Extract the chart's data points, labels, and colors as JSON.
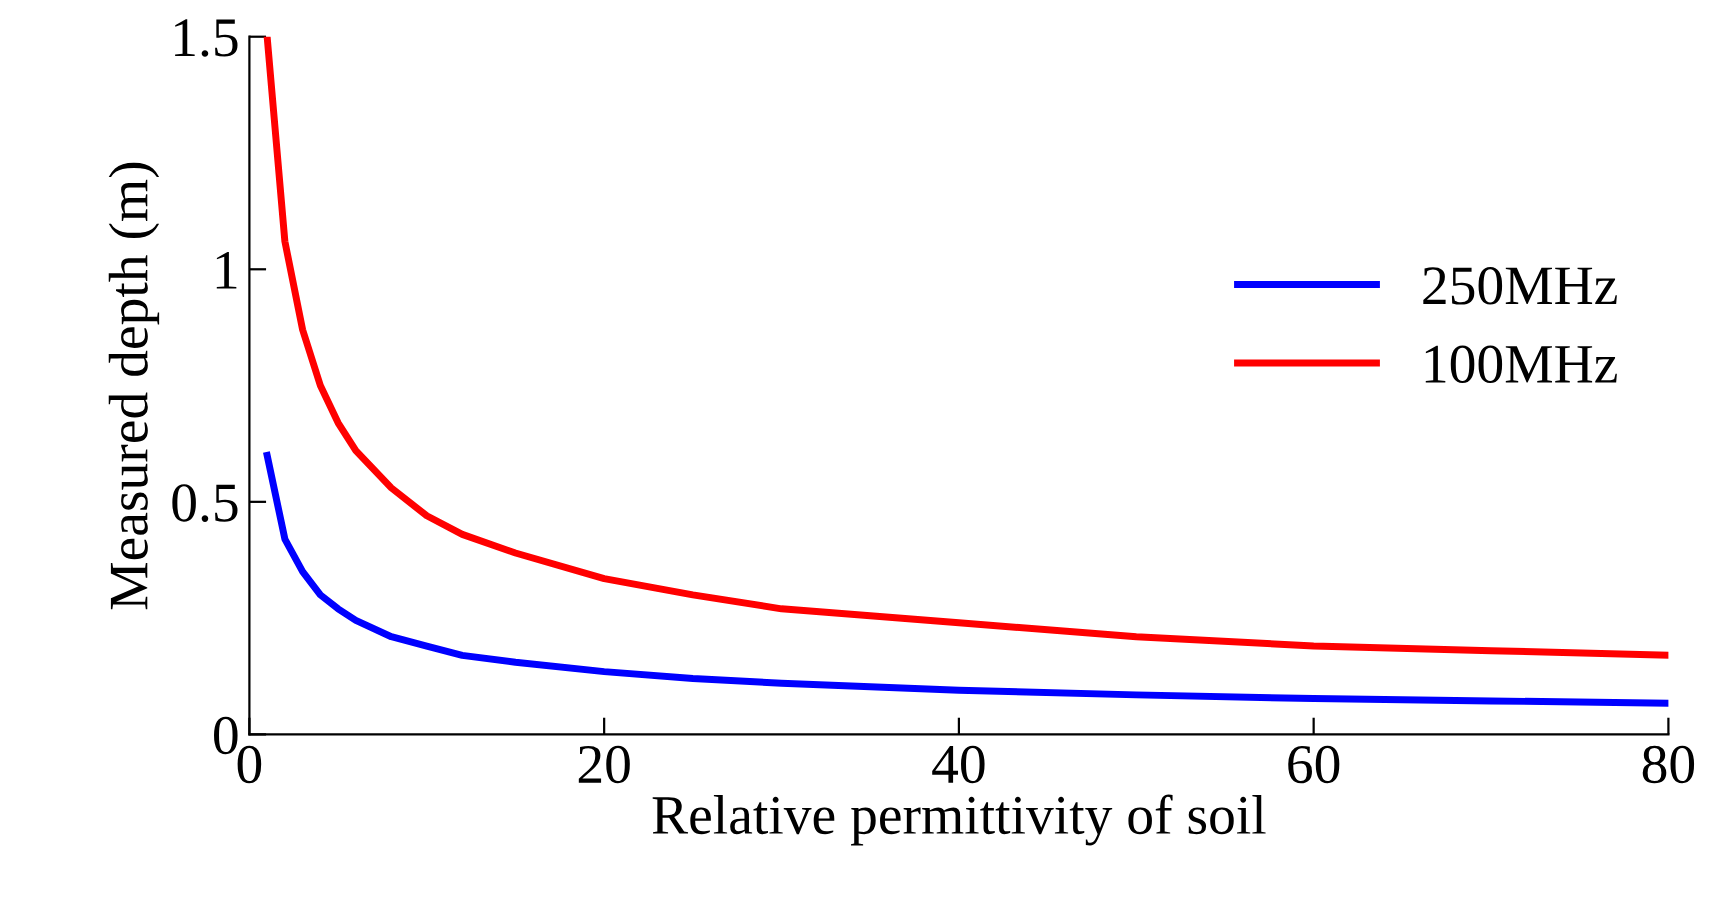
{
  "chart_data": {
    "type": "line",
    "xlabel": "Relative permittivity of soil",
    "ylabel": "Measured depth (m)",
    "x": [
      1,
      2,
      3,
      4,
      5,
      6,
      8,
      10,
      12,
      15,
      20,
      25,
      30,
      40,
      50,
      60,
      70,
      80
    ],
    "series": [
      {
        "name": "250MHz",
        "color": "#0000ff",
        "values": [
          0.6,
          0.42,
          0.35,
          0.3,
          0.27,
          0.245,
          0.21,
          0.19,
          0.17,
          0.155,
          0.135,
          0.12,
          0.11,
          0.095,
          0.085,
          0.077,
          0.072,
          0.067
        ]
      },
      {
        "name": "100MHz",
        "color": "#ff0000",
        "values": [
          1.5,
          1.06,
          0.87,
          0.75,
          0.67,
          0.61,
          0.53,
          0.47,
          0.43,
          0.39,
          0.335,
          0.3,
          0.27,
          0.24,
          0.21,
          0.19,
          0.18,
          0.17
        ]
      }
    ],
    "xlim": [
      0,
      80
    ],
    "xticks": [
      0,
      20,
      40,
      60,
      80
    ],
    "ylim": [
      0,
      1.5
    ],
    "yticks": [
      0,
      0.5,
      1,
      1.5
    ],
    "grid": false,
    "legend": "right",
    "marker": "none",
    "line_style": "solid"
  }
}
